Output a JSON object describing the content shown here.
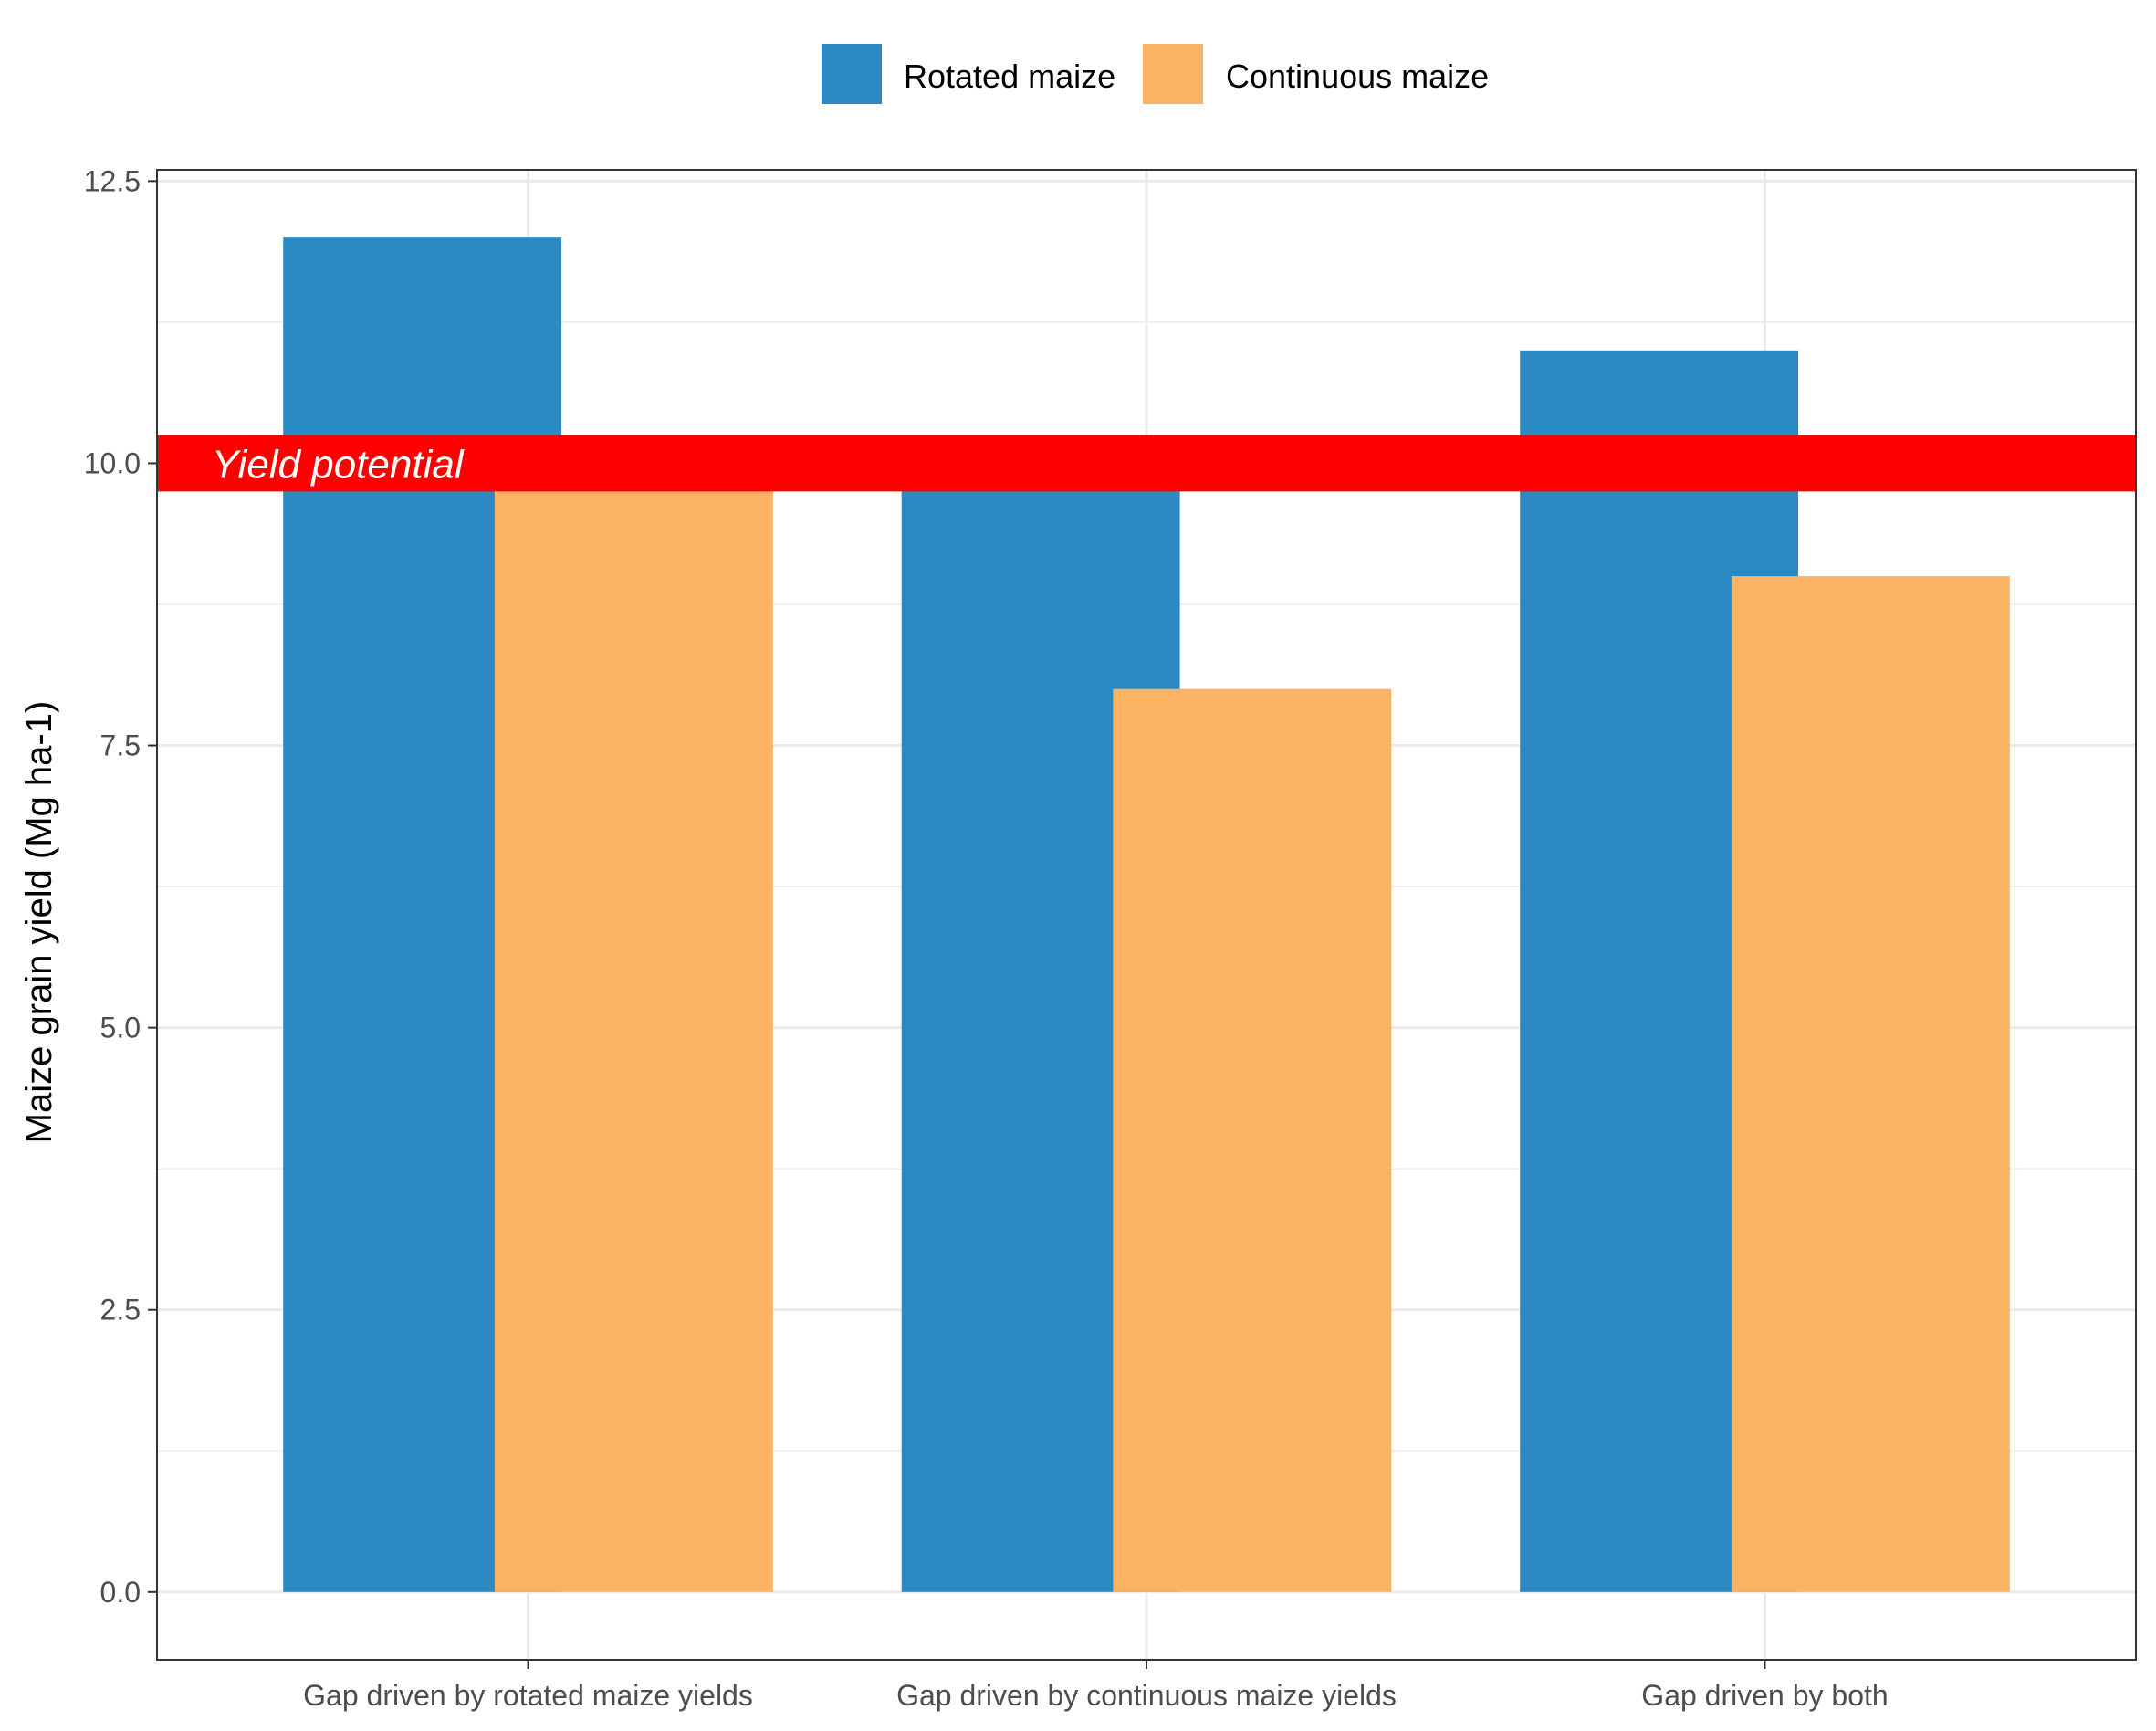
{
  "chart_data": {
    "type": "bar",
    "categories": [
      "Gap driven by rotated maize yields",
      "Gap driven by continuous maize yields",
      "Gap driven by both"
    ],
    "series": [
      {
        "name": "Rotated maize",
        "color": "#2b8ac4",
        "values": [
          12,
          10,
          11
        ]
      },
      {
        "name": "Continuous maize",
        "color": "#fbb363",
        "values": [
          10,
          8,
          9
        ]
      }
    ],
    "xlabel": "",
    "ylabel": "Maize grain yield (Mg ha-1)",
    "ylim": [
      -0.6,
      12.6
    ],
    "yticks": [
      "0.0",
      "2.5",
      "5.0",
      "7.5",
      "10.0",
      "12.5"
    ],
    "ytick_values": [
      0,
      2.5,
      5,
      7.5,
      10,
      12.5
    ],
    "grid": true,
    "legend": "top",
    "annotation": {
      "text": "Yield potential",
      "band_low": 9.75,
      "band_high": 10.25,
      "color": "#ff0000"
    }
  }
}
